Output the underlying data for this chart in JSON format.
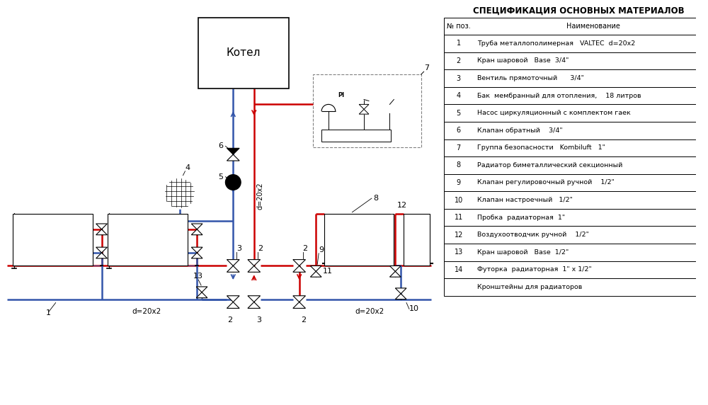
{
  "title": "СПЕЦИФИКАЦИЯ ОСНОВНЫХ МАТЕРИАЛОВ",
  "table_headers": [
    "№ поз.",
    "Наименование"
  ],
  "table_rows": [
    [
      "1",
      "Труба металлополимерная   VALTEC  d=20х2"
    ],
    [
      "2",
      "Кран шаровой   Base  3/4\""
    ],
    [
      "3",
      "Вентиль прямоточный      3/4\""
    ],
    [
      "4",
      "Бак  мембранный для отопления,    18 литров"
    ],
    [
      "5",
      "Насос циркуляционный с комплектом гаек"
    ],
    [
      "6",
      "Клапан обратный    3/4\""
    ],
    [
      "7",
      "Группа безопасности   Kombiluft   1\""
    ],
    [
      "8",
      "Радиатор биметаллический секционный"
    ],
    [
      "9",
      "Клапан регулировочный ручной    1/2\""
    ],
    [
      "10",
      "Клапан настроечный   1/2\""
    ],
    [
      "11",
      "Пробка  радиаторная  1\""
    ],
    [
      "12",
      "Воздухоотводчик ручной    1/2\""
    ],
    [
      "13",
      "Кран шаровой   Base  1/2\""
    ],
    [
      "14",
      "Футорка  радиаторная  1\" х 1/2\""
    ],
    [
      "",
      "Кронштейны для радиаторов"
    ]
  ],
  "red_color": "#CC0000",
  "blue_color": "#3355AA",
  "black_color": "#000000",
  "bg_color": "#FFFFFF"
}
